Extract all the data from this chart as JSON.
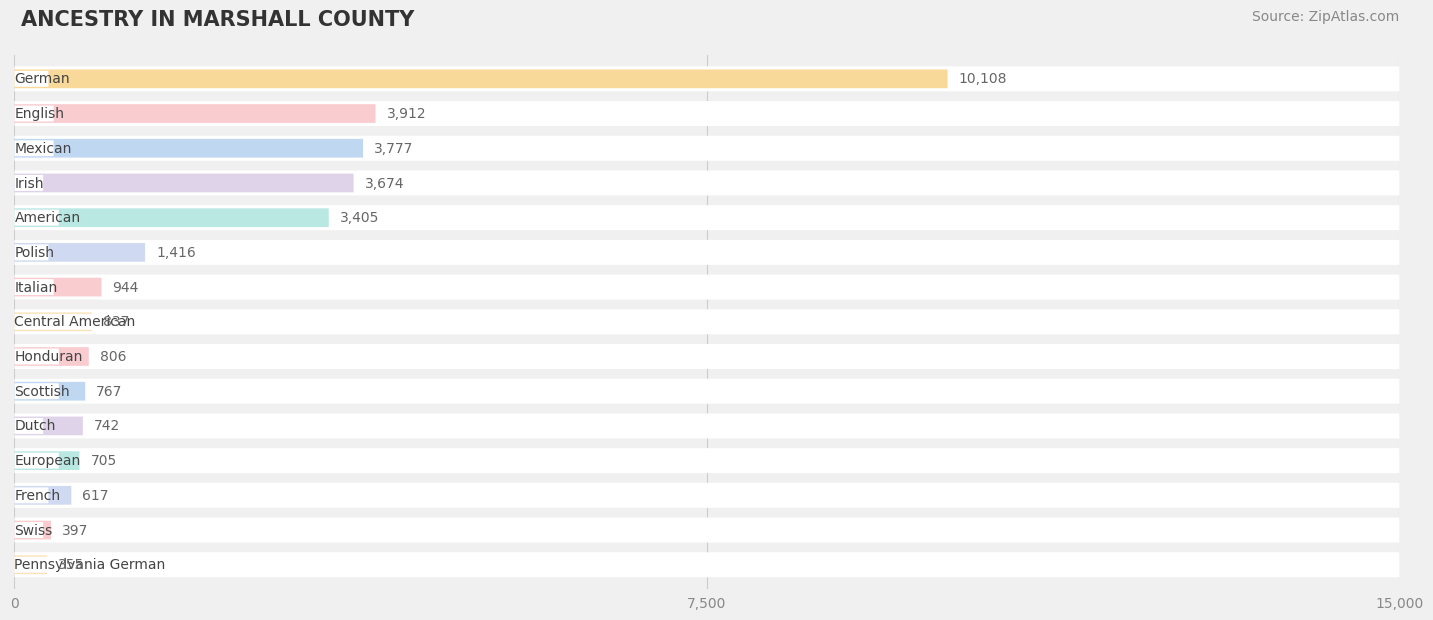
{
  "title": "ANCESTRY IN MARSHALL COUNTY",
  "source": "Source: ZipAtlas.com",
  "categories": [
    "German",
    "English",
    "Mexican",
    "Irish",
    "American",
    "Polish",
    "Italian",
    "Central American",
    "Honduran",
    "Scottish",
    "Dutch",
    "European",
    "French",
    "Swiss",
    "Pennsylvania German"
  ],
  "values": [
    10108,
    3912,
    3777,
    3674,
    3405,
    1416,
    944,
    837,
    806,
    767,
    742,
    705,
    617,
    397,
    355
  ],
  "bar_colors": [
    "#f5b94288",
    "#f4a0a888",
    "#8ab4e888",
    "#c4aed888",
    "#7dd4cc88",
    "#a8b8e888",
    "#f4a0a888",
    "#f5c97a88",
    "#f4a0a888",
    "#8ab4e888",
    "#c4aed888",
    "#7dd4cc88",
    "#a8b8e888",
    "#f4a0a888",
    "#f5c97a88"
  ],
  "dot_colors": [
    "#f5b942",
    "#f4a0a8",
    "#8ab4e8",
    "#c4aed8",
    "#7dd4cc",
    "#a8b8e8",
    "#f4a0a8",
    "#f5c97a",
    "#f4a0a8",
    "#8ab4e8",
    "#c4aed8",
    "#7dd4cc",
    "#a8b8e8",
    "#f4a0a8",
    "#f5c97a"
  ],
  "xlim": [
    0,
    15000
  ],
  "xticks": [
    0,
    7500,
    15000
  ],
  "xtick_labels": [
    "0",
    "7,500",
    "15,000"
  ],
  "background_color": "#f0f0f0",
  "row_bg_color": "#ffffff",
  "title_fontsize": 15,
  "label_fontsize": 10,
  "value_fontsize": 10,
  "source_fontsize": 10
}
